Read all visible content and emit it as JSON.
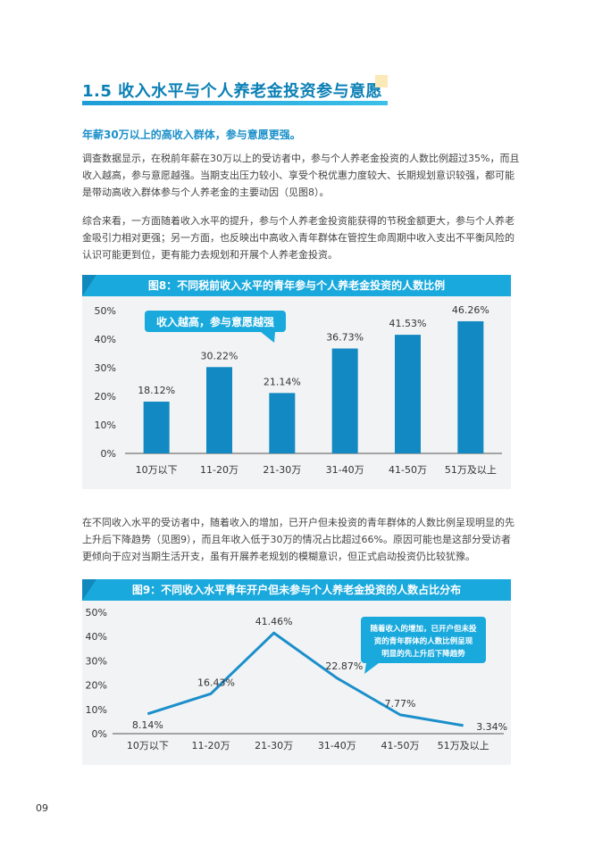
{
  "section": {
    "title": "1.5 收入水平与个人养老金投资参与意愿"
  },
  "subtitle": "年薪30万以上的高收入群体，参与意愿更强。",
  "paragraphs": [
    "调查数据显示，在税前年薪在30万以上的受访者中，参与个人养老金投资的人数比例超过35%，而且收入越高，参与意愿越强。当期支出压力较小、享受个税优惠力度较大、长期规划意识较强，都可能是带动高收入群体参与个人养老金的主要动因（见图8）。",
    "综合来看，一方面随着收入水平的提升，参与个人养老金投资能获得的节税金额更大，参与个人养老金吸引力相对更强；另一方面，也反映出中高收入青年群体在管控生命周期中收入支出不平衡风险的认识可能更到位，更有能力去规划和开展个人养老金投资。",
    "在不同收入水平的受访者中，随着收入的增加，已开户但未投资的青年群体的人数比例呈现明显的先上升后下降趋势（见图9），而且年收入低于30万的情况占比超过66%。原因可能也是这部分受访者更倾向于应对当期生活开支，虽有开展养老规划的模糊意识，但正式启动投资仍比较犹豫。"
  ],
  "chart_data": [
    {
      "type": "bar",
      "title": "图8：不同税前收入水平的青年参与个人养老金投资的人数比例",
      "categories": [
        "10万以下",
        "11-20万",
        "21-30万",
        "31-40万",
        "41-50万",
        "51万及以上"
      ],
      "values": [
        18.12,
        30.22,
        21.14,
        36.73,
        41.53,
        46.26
      ],
      "value_labels": [
        "18.12%",
        "30.22%",
        "21.14%",
        "36.73%",
        "41.53%",
        "46.26%"
      ],
      "ylim": [
        0,
        50
      ],
      "yticks": [
        "0%",
        "10%",
        "20%",
        "30%",
        "40%",
        "50%"
      ],
      "annotation": "收入越高，参与意愿越强",
      "color": "#1289c2",
      "grid": false
    },
    {
      "type": "line",
      "title": "图9：不同收入水平青年开户但未参与个人养老金投资的人数占比分布",
      "categories": [
        "10万以下",
        "11-20万",
        "21-30万",
        "31-40万",
        "41-50万",
        "51万及以上"
      ],
      "values": [
        8.14,
        16.43,
        41.46,
        22.87,
        7.77,
        3.34
      ],
      "value_labels": [
        "8.14%",
        "16.43%",
        "41.46%",
        "22.87%",
        "7.77%",
        "3.34%"
      ],
      "ylim": [
        0,
        50
      ],
      "yticks": [
        "0%",
        "10%",
        "20%",
        "30%",
        "40%",
        "50%"
      ],
      "annotation_lines": [
        "随着收入的增加，已开户但未投",
        "资的青年群体的人数比例呈现",
        "明显的先上升后下降趋势"
      ],
      "color": "#1a8fcb",
      "grid": false
    }
  ],
  "page_number": "09",
  "colors": {
    "accent": "#1aa9dd",
    "title": "#0a7fb5",
    "bar": "#1289c2"
  }
}
